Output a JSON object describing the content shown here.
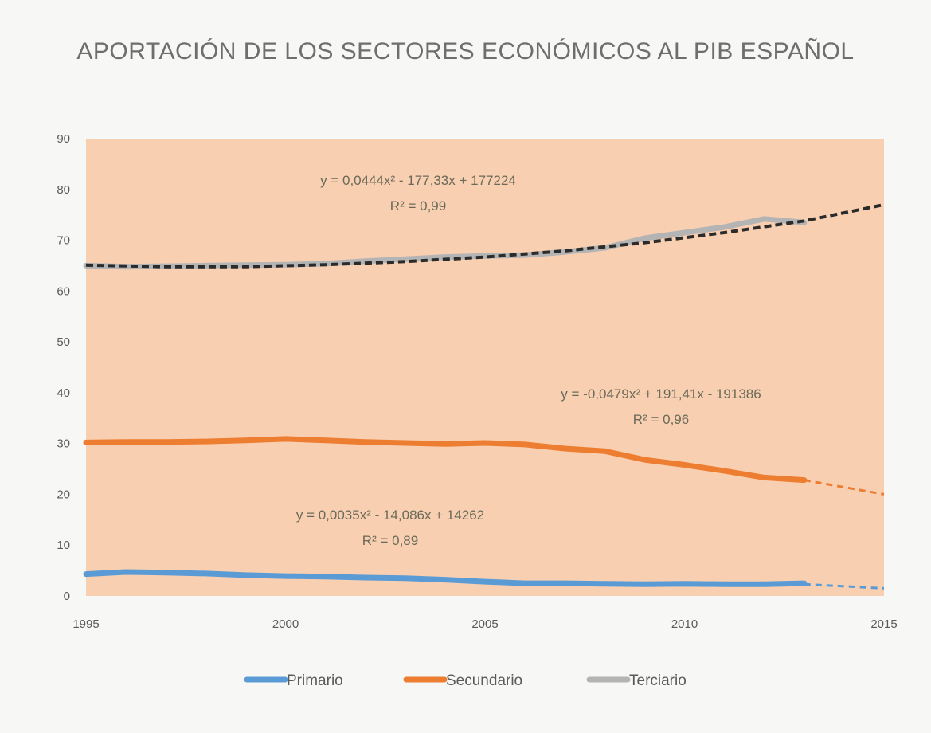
{
  "chart_data": {
    "type": "line",
    "title": "APORTACIÓN DE LOS SECTORES ECONÓMICOS AL PIB ESPAÑOL",
    "xlabel": "",
    "ylabel": "",
    "xlim": [
      1995,
      2015
    ],
    "ylim": [
      0,
      90
    ],
    "x_ticks": [
      1995,
      2000,
      2005,
      2010,
      2015
    ],
    "y_ticks": [
      0,
      10,
      20,
      30,
      40,
      50,
      60,
      70,
      80,
      90
    ],
    "plot_background": "#f8cfb0",
    "legend_position": "bottom",
    "series": [
      {
        "name": "Primario",
        "color": "#5b9bd5",
        "x": [
          1995,
          1996,
          1997,
          1998,
          1999,
          2000,
          2001,
          2002,
          2003,
          2004,
          2005,
          2006,
          2007,
          2008,
          2009,
          2010,
          2011,
          2012,
          2013
        ],
        "values": [
          4.3,
          4.7,
          4.6,
          4.4,
          4.1,
          3.9,
          3.8,
          3.6,
          3.5,
          3.2,
          2.8,
          2.5,
          2.5,
          2.4,
          2.3,
          2.4,
          2.3,
          2.3,
          2.5
        ],
        "trendline": {
          "equation": "y = 0,0035x² - 14,086x + 14262",
          "r2": "R² = 0,89",
          "x": [
            2013,
            2015
          ],
          "values": [
            2.3,
            1.5
          ]
        }
      },
      {
        "name": "Secundario",
        "color": "#ed7d31",
        "x": [
          1995,
          1996,
          1997,
          1998,
          1999,
          2000,
          2001,
          2002,
          2003,
          2004,
          2005,
          2006,
          2007,
          2008,
          2009,
          2010,
          2011,
          2012,
          2013
        ],
        "values": [
          30.2,
          30.3,
          30.3,
          30.4,
          30.6,
          30.9,
          30.6,
          30.3,
          30.1,
          29.9,
          30.1,
          29.8,
          29.0,
          28.5,
          26.8,
          25.8,
          24.6,
          23.3,
          22.8
        ],
        "trendline": {
          "equation": "y = -0,0479x² + 191,41x - 191386",
          "r2": "R² = 0,96",
          "x": [
            2013,
            2015
          ],
          "values": [
            22.8,
            20.0
          ]
        }
      },
      {
        "name": "Terciario",
        "color": "#b4b4b4",
        "x": [
          1995,
          1996,
          1997,
          1998,
          1999,
          2000,
          2001,
          2002,
          2003,
          2004,
          2005,
          2006,
          2007,
          2008,
          2009,
          2010,
          2011,
          2012,
          2013
        ],
        "values": [
          65.0,
          64.8,
          64.9,
          65.0,
          65.1,
          65.2,
          65.4,
          65.9,
          66.3,
          66.7,
          66.9,
          67.1,
          67.7,
          68.5,
          70.4,
          71.5,
          72.6,
          74.2,
          73.5
        ],
        "trendline": {
          "equation": "y = 0,0444x² - 177,33x + 177224",
          "r2": "R² = 0,99",
          "x": [
            1995,
            1997,
            1999,
            2001,
            2003,
            2005,
            2007,
            2009,
            2011,
            2013,
            2015
          ],
          "values": [
            65.1,
            64.8,
            64.8,
            65.2,
            65.8,
            66.7,
            67.9,
            69.5,
            71.5,
            73.8,
            77.0
          ]
        }
      }
    ]
  }
}
